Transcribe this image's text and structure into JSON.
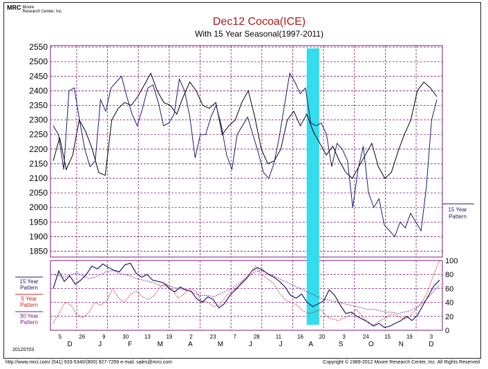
{
  "header": {
    "logo_mark": "MRC",
    "logo_text": [
      "Moore",
      "Research Center, Inc."
    ],
    "title": "Dec12 Cocoa(ICE)",
    "subtitle": "With 15 Year Seasonal(1997-2011)"
  },
  "footer": {
    "left": "http://www.mrci.com/   (541) 933-5340/(800) 927-7259   e-mail: sales@mrci.com",
    "right": "Copyright © 1989-2012 Moore Research Center, Inc. All Rights Reserved",
    "date_stamp": "20120703"
  },
  "colors": {
    "grid": "#7a1a7a",
    "price_line": "#000000",
    "seasonal_15": "#1a1a6e",
    "pattern_5": "#cc2020",
    "pattern_30": "#7a1a7a",
    "highlight": "#33ddee"
  },
  "chart_data": [
    {
      "type": "line",
      "title": "Dec12 Cocoa(ICE)",
      "subtitle": "With 15 Year Seasonal(1997-2011)",
      "y_ticks": [
        2550,
        2500,
        2450,
        2400,
        2350,
        2300,
        2250,
        2200,
        2150,
        2100,
        2050,
        2000,
        1950,
        1900,
        1850
      ],
      "ylim": [
        1830,
        2555
      ],
      "grid": true,
      "right_label": [
        "15 Year",
        "Pattern"
      ],
      "highlight_band": {
        "start_week": 40.5,
        "end_week": 42.0
      },
      "series": [
        {
          "values": [
            2160,
            2240,
            2130,
            2180,
            2300,
            2260,
            2200,
            2120,
            2110,
            2300,
            2340,
            2360,
            2350,
            2380,
            2420,
            2460,
            2400,
            2360,
            2350,
            2320,
            2380,
            2430,
            2400,
            2350,
            2340,
            2360,
            2250,
            2280,
            2300,
            2360,
            2400,
            2310,
            2200,
            2150,
            2160,
            2200,
            2300,
            2330,
            2280,
            2320,
            2260,
            2220,
            2180,
            2210,
            2160,
            2120,
            2100,
            2140,
            2180,
            2220,
            2140,
            2100,
            2120,
            2190,
            2250,
            2300,
            2400,
            2430,
            2410,
            2380
          ]
        },
        {
          "values": [
            2280,
            2250,
            2130,
            2400,
            2410,
            2300,
            2200,
            2140,
            2160,
            2370,
            2330,
            2410,
            2430,
            2450,
            2380,
            2320,
            2280,
            2340,
            2410,
            2420,
            2360,
            2280,
            2290,
            2320,
            2440,
            2400,
            2310,
            2170,
            2250,
            2250,
            2310,
            2350,
            2280,
            2180,
            2130,
            2250,
            2280,
            2310,
            2250,
            2190,
            2120,
            2100,
            2150,
            2240,
            2350,
            2460,
            2430,
            2390,
            2410,
            2290,
            2280,
            2290,
            2250,
            2140,
            2220,
            2200,
            2160,
            2000,
            2130,
            2210,
            2050,
            2000,
            2030,
            1940,
            1920,
            1900,
            1950,
            1930,
            1980,
            1950,
            1920,
            2070,
            2300,
            2370
          ]
        }
      ]
    },
    {
      "type": "line",
      "y_ticks": [
        100,
        80,
        60,
        40,
        20,
        0
      ],
      "ylim": [
        0,
        100
      ],
      "grid": true,
      "legend": [
        {
          "name": "15 Year Pattern",
          "label": [
            "15 Year",
            "Pattern"
          ]
        },
        {
          "name": "5 Year Pattern",
          "label": [
            "5 Year",
            "Pattern"
          ]
        },
        {
          "name": "30 Year Pattern",
          "label": [
            "30 Year",
            "Pattern"
          ]
        }
      ],
      "series": [
        {
          "name": "15 Year Pattern",
          "values": [
            60,
            85,
            70,
            78,
            66,
            72,
            80,
            92,
            88,
            95,
            90,
            86,
            84,
            94,
            96,
            82,
            76,
            80,
            72,
            70,
            68,
            60,
            55,
            62,
            58,
            56,
            45,
            40,
            48,
            44,
            32,
            38,
            50,
            58,
            66,
            74,
            85,
            90,
            86,
            80,
            76,
            70,
            62,
            50,
            46,
            52,
            40,
            34,
            38,
            42,
            58,
            50,
            36,
            24,
            26,
            20,
            16,
            12,
            6,
            10,
            4,
            6,
            10,
            14,
            20,
            14,
            22,
            36,
            50,
            64,
            72
          ]
        },
        {
          "name": "5 Year Pattern",
          "values": [
            10,
            25,
            40,
            36,
            22,
            18,
            26,
            40,
            36,
            42,
            60,
            46,
            40,
            52,
            56,
            48,
            44,
            50,
            62,
            66,
            58,
            46,
            52,
            60,
            56,
            42,
            40,
            34,
            36,
            48,
            56,
            62,
            72,
            80,
            92,
            80,
            74,
            68,
            54,
            44,
            40,
            36,
            28,
            24,
            26,
            30,
            20,
            16,
            14,
            18,
            22,
            30,
            20,
            10,
            8,
            14,
            18,
            24,
            20,
            16,
            20,
            30,
            40,
            56,
            80,
            100
          ]
        },
        {
          "name": "30 Year Pattern",
          "values": [
            80,
            78,
            76,
            80,
            82,
            78,
            74,
            76,
            80,
            84,
            86,
            82,
            80,
            78,
            74,
            72,
            70,
            68,
            64,
            66,
            62,
            60,
            58,
            56,
            52,
            50,
            50,
            48,
            52,
            56,
            60,
            66,
            72,
            78,
            84,
            86,
            82,
            78,
            74,
            70,
            66,
            62,
            58,
            54,
            50,
            46,
            44,
            42,
            40,
            38,
            36,
            34,
            32,
            30,
            30,
            28,
            26,
            26,
            24,
            26,
            28,
            32,
            38,
            46,
            56,
            64
          ]
        }
      ]
    }
  ],
  "x_axis": {
    "day_ticks": [
      "5",
      "26",
      "9",
      "30",
      "13",
      "19",
      "2",
      "23",
      "7",
      "28",
      "11",
      "16",
      "20",
      "3",
      "24",
      "15",
      "19",
      "3"
    ],
    "month_labels": [
      "D",
      "J",
      "F",
      "M",
      "A",
      "M",
      "J",
      "J",
      "A",
      "S",
      "O",
      "N",
      "D"
    ]
  }
}
